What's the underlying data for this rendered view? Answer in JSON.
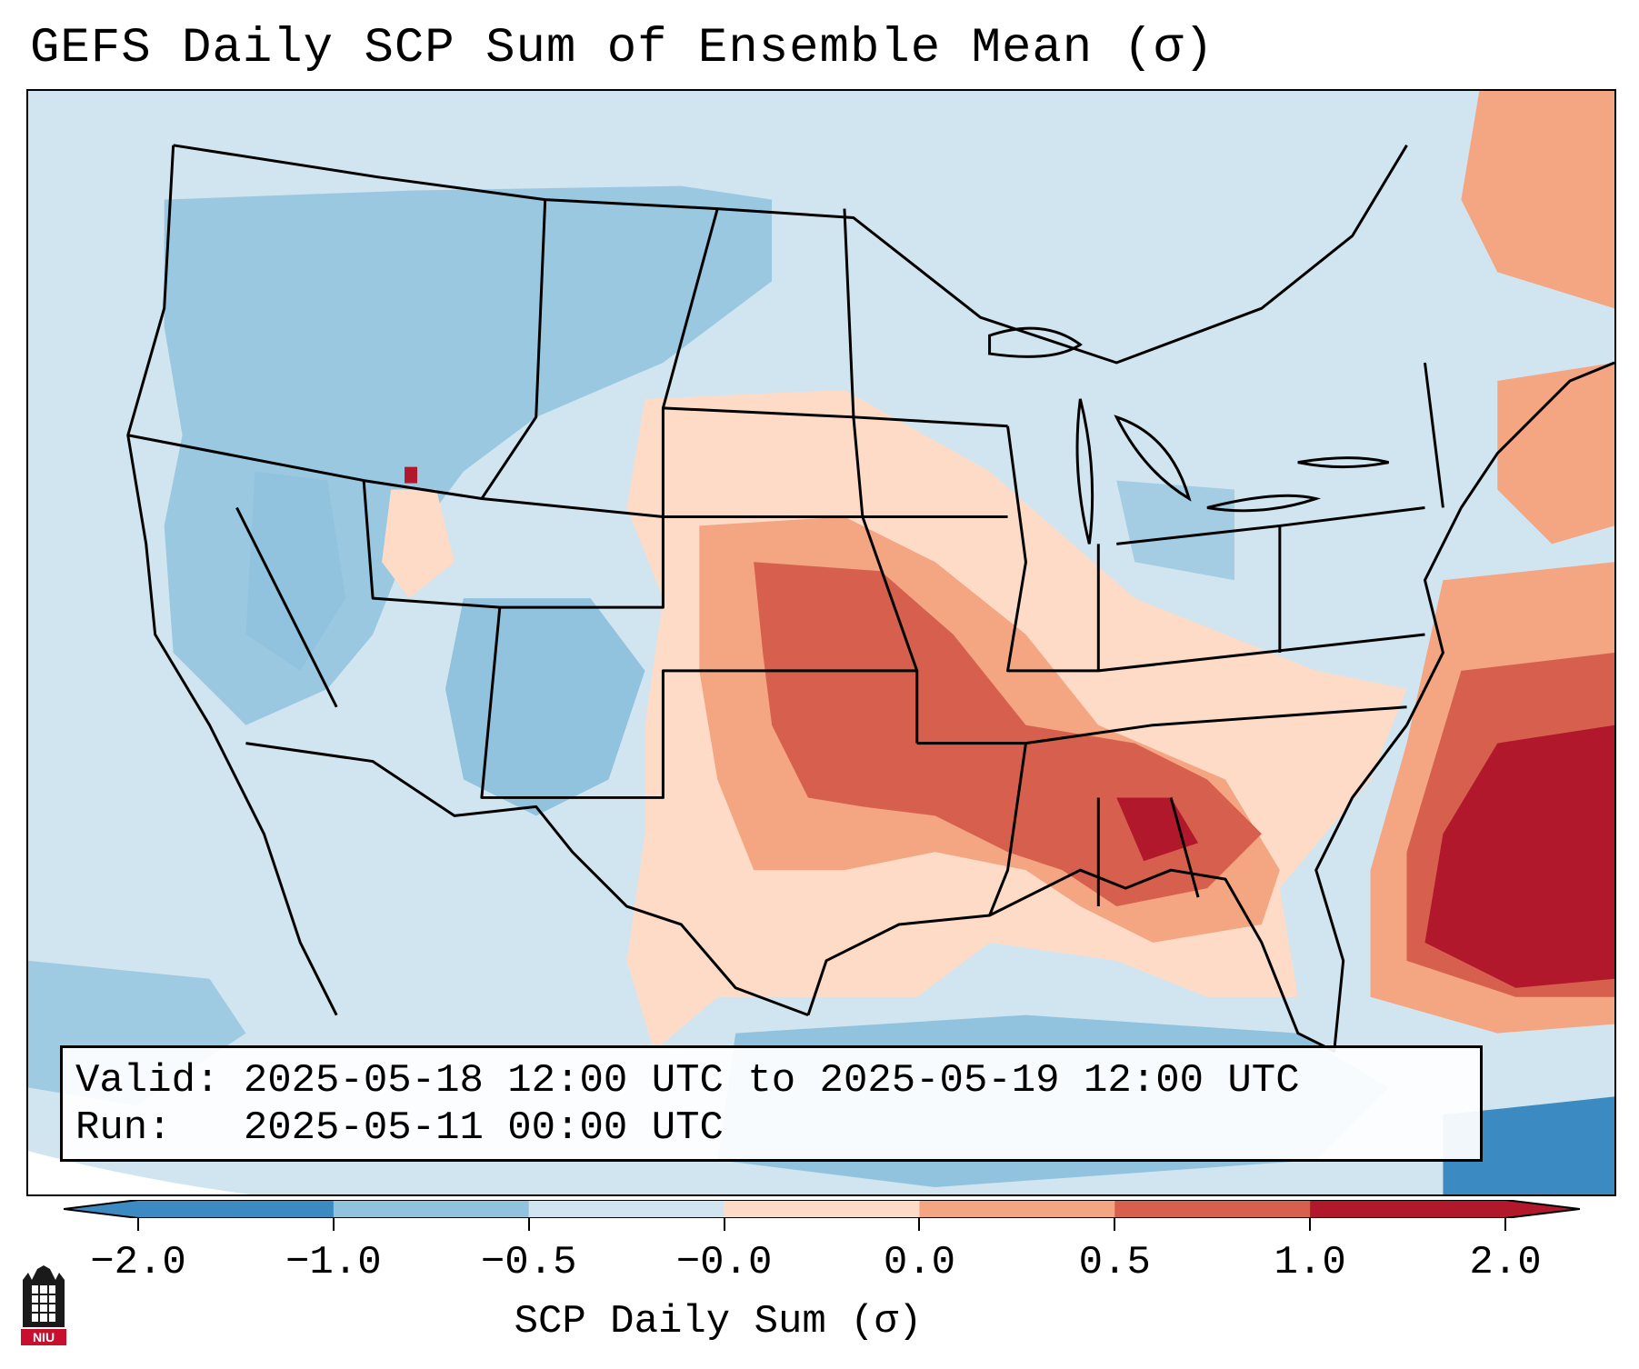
{
  "title": "GEFS Daily SCP Sum of Ensemble Mean (σ)",
  "info": {
    "valid_line": "Valid: 2025-05-18 12:00 UTC to 2025-05-19 12:00 UTC",
    "run_line": "Run:   2025-05-11 00:00 UTC"
  },
  "colorbar": {
    "label": "SCP Daily Sum (σ)",
    "ticks": [
      "−2.0",
      "−1.0",
      "−0.5",
      "−0.0",
      "0.0",
      "0.5",
      "1.0",
      "2.0"
    ],
    "colors": [
      "#3b8bc2",
      "#91c3de",
      "#d1e5f0",
      "#fddbc7",
      "#f4a582",
      "#d6604d",
      "#b2182b"
    ],
    "extend": "both"
  },
  "logo": {
    "icon": "niu-logo-icon",
    "text": "NIU"
  },
  "map": {
    "projection": "Lambert conformal CONUS",
    "palette": {
      "neutral": "#d1e5f0",
      "blue_weak": "#91c3de",
      "blue_strong": "#3b8bc2",
      "red_weak": "#fddbc7",
      "red_mid": "#f4a582",
      "red_strong": "#d6604d",
      "red_max": "#b2182b"
    }
  }
}
